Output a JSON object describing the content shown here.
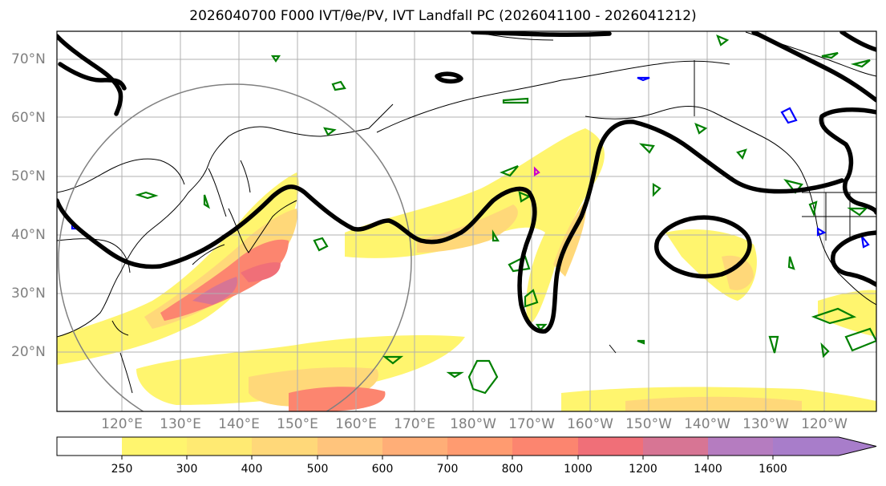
{
  "title": "2026040700 F000 IVT/θe/PV, IVT Landfall PC (2026041100 - 2026041212)",
  "lat_labels": [
    "70°N",
    "60°N",
    "50°N",
    "40°N",
    "30°N",
    "20°N"
  ],
  "lon_labels": [
    "120°E",
    "130°E",
    "140°E",
    "150°E",
    "160°E",
    "170°E",
    "180°W",
    "170°W",
    "160°W",
    "150°W",
    "140°W",
    "130°W",
    "120°W"
  ],
  "colorbar": {
    "ticks": [
      "250",
      "300",
      "400",
      "500",
      "600",
      "700",
      "800",
      "1000",
      "1200",
      "1400",
      "1600"
    ],
    "colors": [
      "#ffffff",
      "#fff56e",
      "#ffea72",
      "#ffd879",
      "#ffc47c",
      "#ffae77",
      "#ff9b70",
      "#fc856f",
      "#f06f78",
      "#d77594",
      "#b57cc0",
      "#a87dca"
    ]
  },
  "colors": {
    "coastline": "#000000",
    "theta_e_contour": "#000000",
    "pv_contour": "#008000",
    "pv_negative": "#0000ff",
    "landfall_circle": "#808080",
    "grid": "#b0b0b0"
  }
}
